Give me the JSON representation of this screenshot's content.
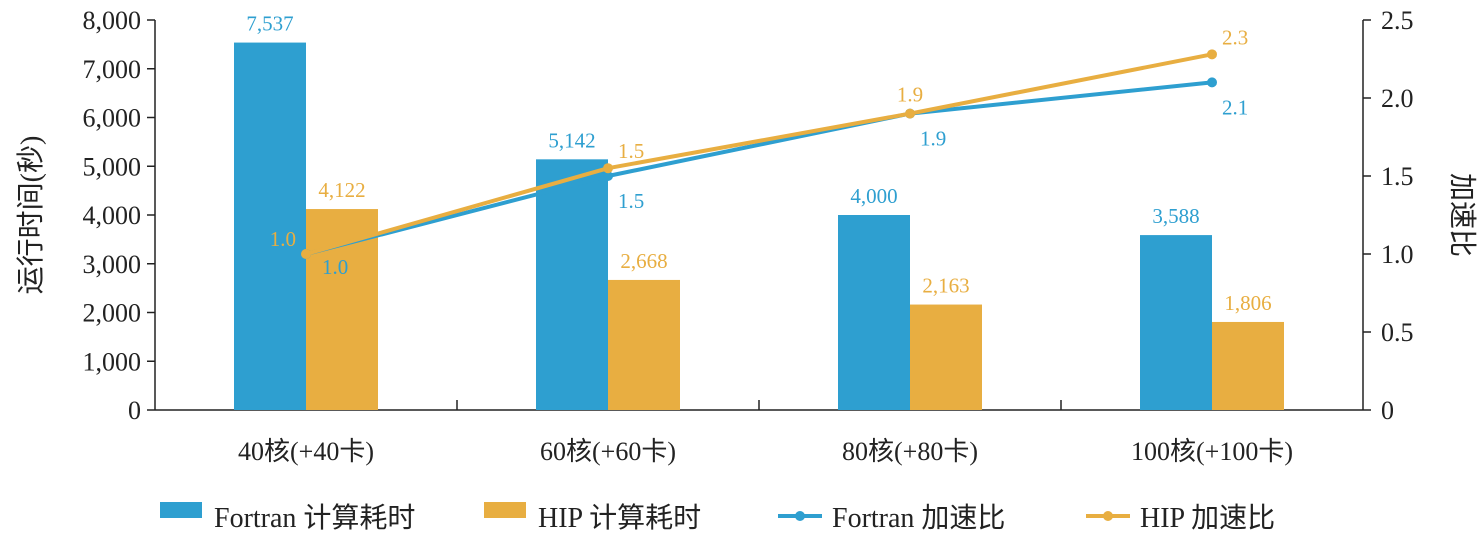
{
  "chart_data": {
    "type": "bar",
    "combo": "bar+line",
    "categories": [
      "40核(+40卡)",
      "60核(+60卡)",
      "80核(+80卡)",
      "100核(+100卡)"
    ],
    "series": [
      {
        "name": "Fortran 计算耗时",
        "type": "bar",
        "axis": "left",
        "color": "#2e9fd0",
        "values": [
          7537,
          5142,
          4000,
          3588
        ],
        "labels": [
          "7,537",
          "5,142",
          "4,000",
          "3,588"
        ]
      },
      {
        "name": "HIP 计算耗时",
        "type": "bar",
        "axis": "left",
        "color": "#e8ae41",
        "values": [
          4122,
          2668,
          2163,
          1806
        ],
        "labels": [
          "4,122",
          "2,668",
          "2,163",
          "1,806"
        ]
      },
      {
        "name": "Fortran 加速比",
        "type": "line",
        "axis": "right",
        "color": "#2e9fd0",
        "values": [
          1.0,
          1.5,
          1.9,
          2.1
        ],
        "labels": [
          "1.0",
          "1.5",
          "1.9",
          "2.1"
        ]
      },
      {
        "name": "HIP 加速比",
        "type": "line",
        "axis": "right",
        "color": "#e8ae41",
        "values": [
          1.0,
          1.55,
          1.9,
          2.28
        ],
        "labels": [
          "1.0",
          "1.5",
          "1.9",
          "2.3"
        ]
      }
    ],
    "ylabel": "运行时间(秒)",
    "y2label": "加速比",
    "ylim": [
      0,
      8000
    ],
    "y2lim": [
      0,
      2.5
    ],
    "yticks": [
      "0",
      "1,000",
      "2,000",
      "3,000",
      "4,000",
      "5,000",
      "6,000",
      "7,000",
      "8,000"
    ],
    "y2ticks": [
      "0",
      "0.5",
      "1.0",
      "1.5",
      "2.0",
      "2.5"
    ],
    "grid": false,
    "legend_position": "bottom"
  }
}
